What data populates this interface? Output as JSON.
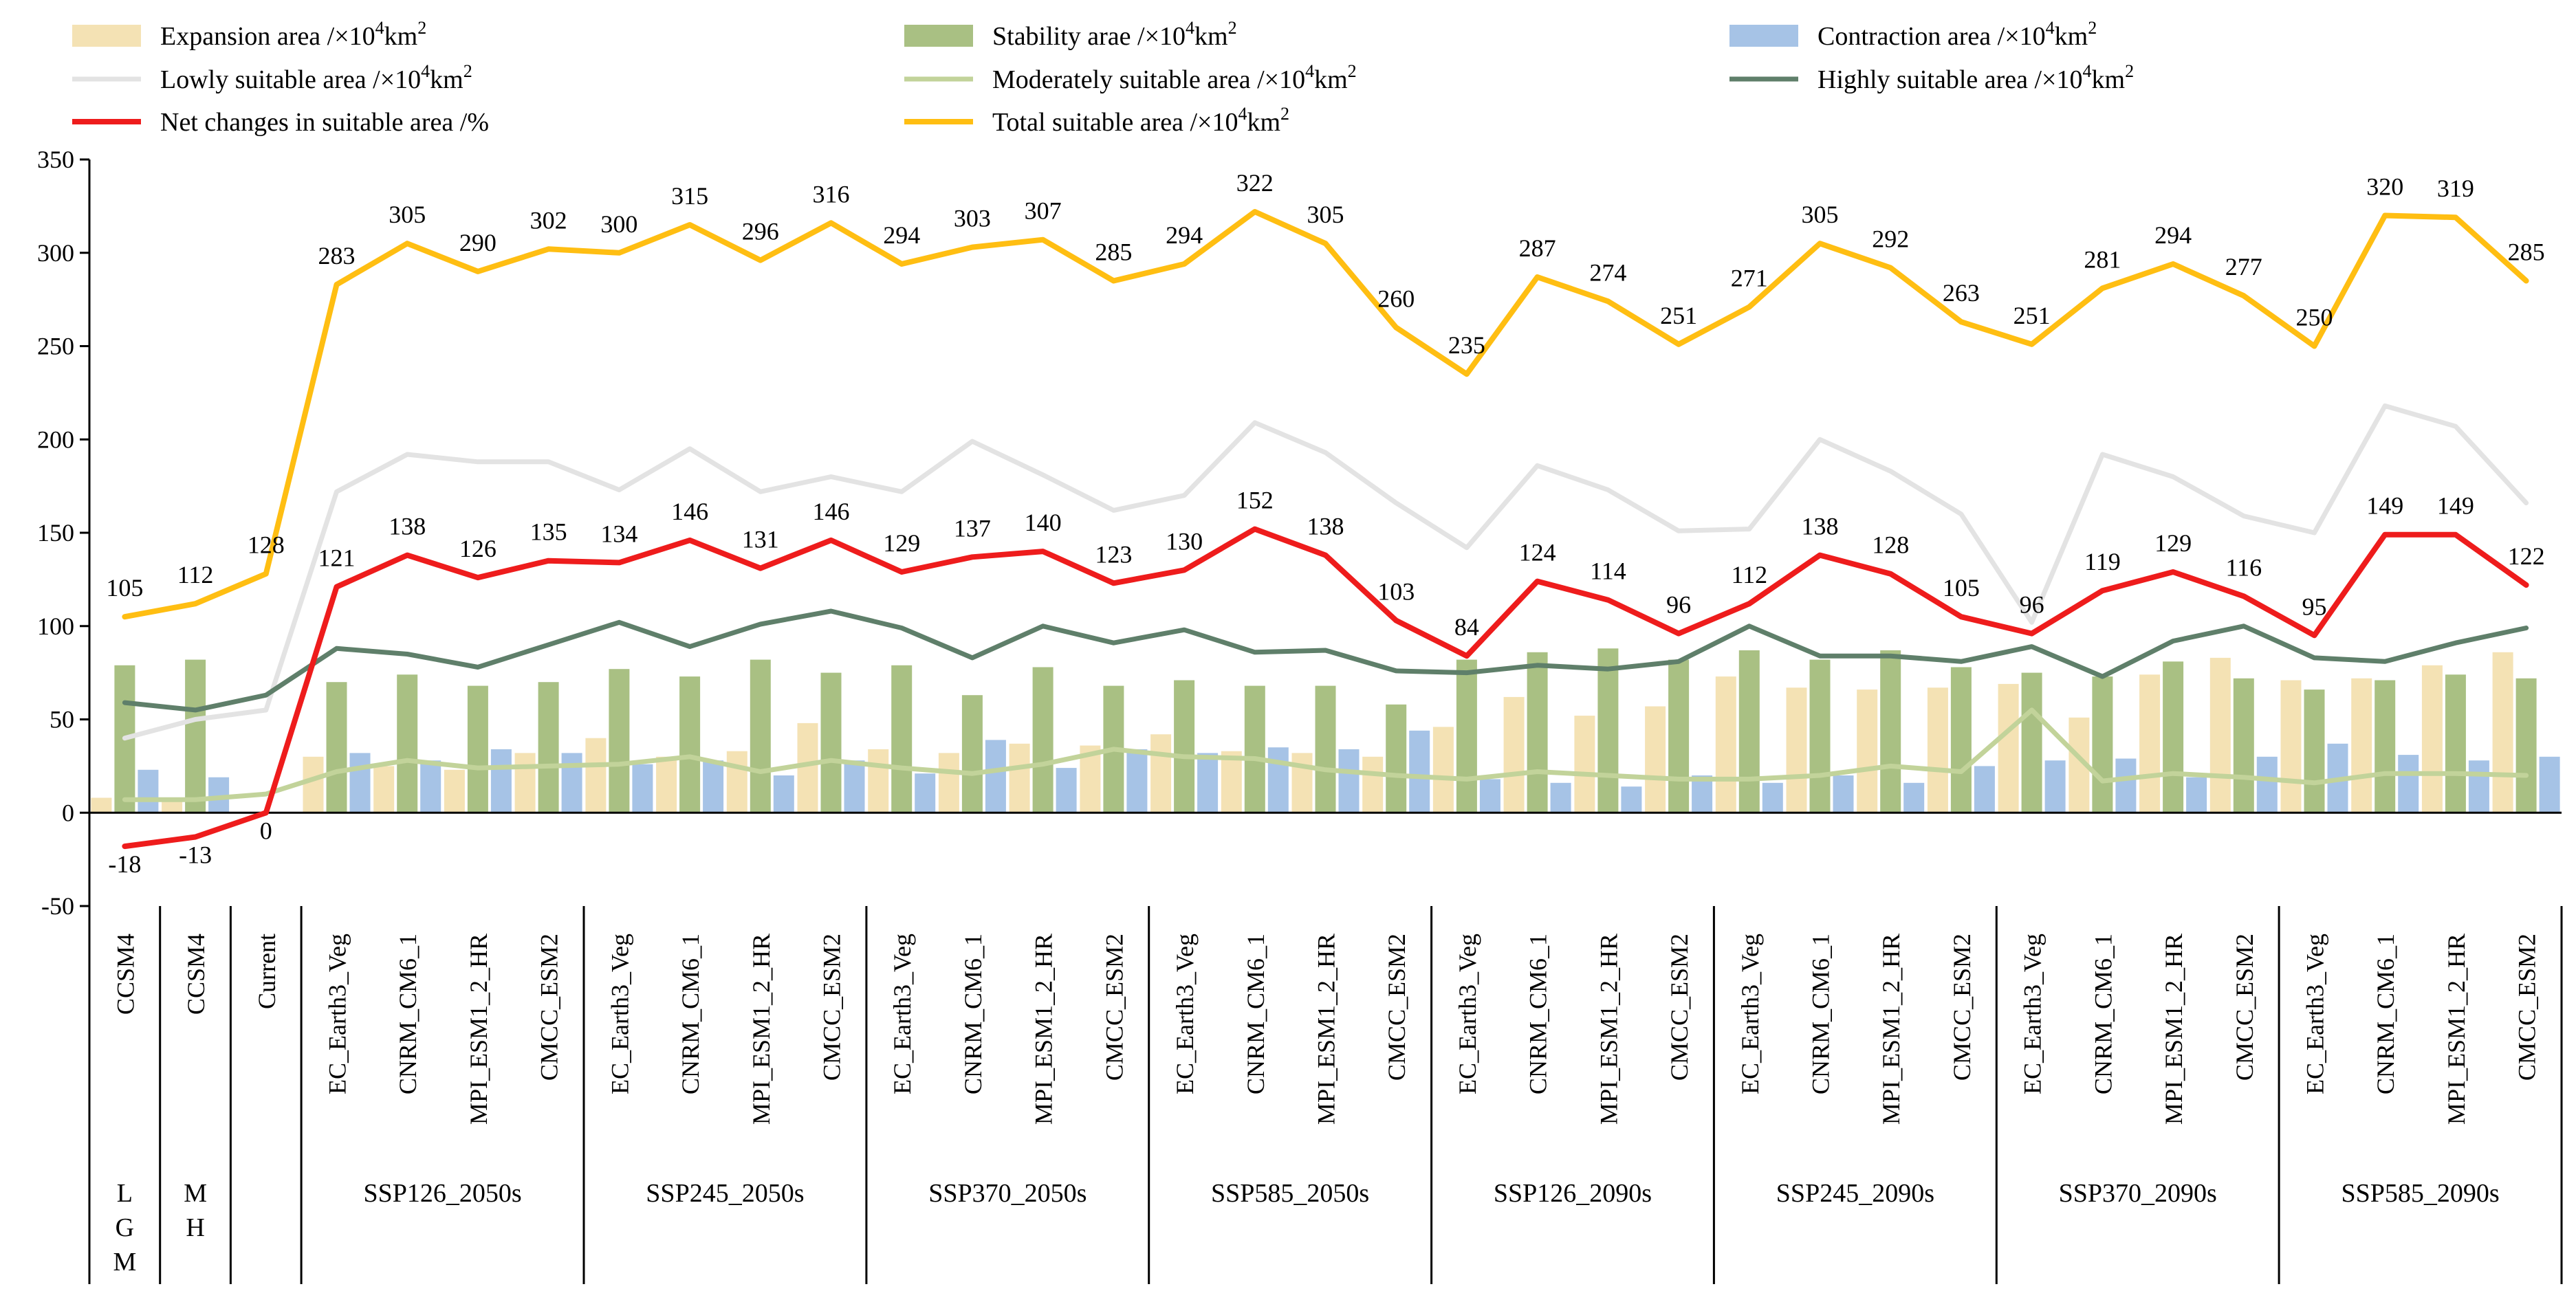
{
  "chart_data": {
    "type": "bar+line",
    "title": "",
    "xlabel": "",
    "ylabel": "",
    "ylim": [
      -50,
      350
    ],
    "yticks": [
      -50,
      0,
      50,
      100,
      150,
      200,
      250,
      300,
      350
    ],
    "grid": false,
    "legend_position": "top",
    "categories": [
      "CCSM4",
      "CCSM4",
      "Current",
      "EC_Earth3_Veg",
      "CNRM_CM6_1",
      "MPI_ESM1_2_HR",
      "CMCC_ESM2",
      "EC_Earth3_Veg",
      "CNRM_CM6_1",
      "MPI_ESM1_2_HR",
      "CMCC_ESM2",
      "EC_Earth3_Veg",
      "CNRM_CM6_1",
      "MPI_ESM1_2_HR",
      "CMCC_ESM2",
      "EC_Earth3_Veg",
      "CNRM_CM6_1",
      "MPI_ESM1_2_HR",
      "CMCC_ESM2",
      "EC_Earth3_Veg",
      "CNRM_CM6_1",
      "MPI_ESM1_2_HR",
      "CMCC_ESM2",
      "EC_Earth3_Veg",
      "CNRM_CM6_1",
      "MPI_ESM1_2_HR",
      "CMCC_ESM2",
      "EC_Earth3_Veg",
      "CNRM_CM6_1",
      "MPI_ESM1_2_HR",
      "CMCC_ESM2",
      "EC_Earth3_Veg",
      "CNRM_CM6_1",
      "MPI_ESM1_2_HR",
      "CMCC_ESM2"
    ],
    "groups": [
      {
        "label": "L\nG\nM",
        "start": 0,
        "end": 0
      },
      {
        "label": "M\nH",
        "start": 1,
        "end": 1
      },
      {
        "label": "",
        "start": 2,
        "end": 2
      },
      {
        "label": "SSP126_2050s",
        "start": 3,
        "end": 6
      },
      {
        "label": "SSP245_2050s",
        "start": 7,
        "end": 10
      },
      {
        "label": "SSP370_2050s",
        "start": 11,
        "end": 14
      },
      {
        "label": "SSP585_2050s",
        "start": 15,
        "end": 18
      },
      {
        "label": "SSP126_2090s",
        "start": 19,
        "end": 22
      },
      {
        "label": "SSP245_2090s",
        "start": 23,
        "end": 26
      },
      {
        "label": "SSP370_2090s",
        "start": 27,
        "end": 30
      },
      {
        "label": "SSP585_2090s",
        "start": 31,
        "end": 34
      }
    ],
    "bar_series": [
      {
        "name": "Expansion area",
        "unit": "/×10",
        "sup": "4",
        "unit2": "km",
        "sup2": "2",
        "color": "#f4e2b4",
        "values": [
          8,
          8,
          0,
          30,
          25,
          23,
          32,
          40,
          30,
          33,
          48,
          34,
          32,
          37,
          36,
          42,
          33,
          32,
          30,
          46,
          62,
          52,
          57,
          73,
          67,
          66,
          67,
          69,
          51,
          74,
          83,
          71,
          72,
          79,
          86
        ]
      },
      {
        "name": "Stability arae",
        "unit": "/×10",
        "sup": "4",
        "unit2": "km",
        "sup2": "2",
        "color": "#a9c083",
        "values": [
          79,
          82,
          0,
          70,
          74,
          68,
          70,
          77,
          73,
          82,
          75,
          79,
          63,
          78,
          68,
          71,
          68,
          68,
          58,
          82,
          86,
          88,
          82,
          87,
          82,
          87,
          78,
          75,
          73,
          81,
          72,
          66,
          71,
          74,
          72
        ]
      },
      {
        "name": "Contraction area",
        "unit": "/×10",
        "sup": "4",
        "unit2": "km",
        "sup2": "2",
        "color": "#a6c3e6",
        "values": [
          23,
          19,
          0,
          32,
          28,
          34,
          32,
          26,
          28,
          20,
          28,
          21,
          39,
          24,
          34,
          32,
          35,
          34,
          44,
          18,
          16,
          14,
          20,
          16,
          20,
          16,
          25,
          28,
          29,
          19,
          30,
          37,
          31,
          28,
          30
        ]
      }
    ],
    "line_series": [
      {
        "name": "Lowly suitable area",
        "unit": "/×10",
        "sup": "4",
        "unit2": "km",
        "sup2": "2",
        "color": "#e3e3e3",
        "width": 7,
        "values": [
          40,
          50,
          55,
          172,
          192,
          188,
          188,
          173,
          195,
          172,
          180,
          172,
          199,
          181,
          162,
          170,
          209,
          193,
          166,
          142,
          186,
          173,
          151,
          152,
          200,
          183,
          160,
          102,
          192,
          180,
          159,
          150,
          218,
          207,
          166
        ]
      },
      {
        "name": "Moderately suitable area",
        "unit": "/×10",
        "sup": "4",
        "unit2": "km",
        "sup2": "2",
        "color": "#c2d39a",
        "width": 7,
        "values": [
          7,
          7,
          10,
          22,
          28,
          24,
          25,
          26,
          30,
          22,
          28,
          24,
          21,
          26,
          34,
          30,
          29,
          23,
          20,
          18,
          22,
          20,
          18,
          18,
          20,
          25,
          22,
          55,
          17,
          21,
          19,
          16,
          21,
          21,
          20
        ]
      },
      {
        "name": "Highly suitable area",
        "unit": "/×10",
        "sup": "4",
        "unit2": "km",
        "sup2": "2",
        "color": "#5f7f6a",
        "width": 7,
        "values": [
          59,
          55,
          63,
          88,
          85,
          78,
          90,
          102,
          89,
          101,
          108,
          99,
          83,
          100,
          91,
          98,
          86,
          87,
          76,
          75,
          79,
          77,
          81,
          100,
          84,
          84,
          81,
          89,
          73,
          92,
          100,
          83,
          81,
          91,
          99
        ]
      },
      {
        "name": "Net changes in suitable area",
        "unit": "/%",
        "sup": "",
        "unit2": "",
        "sup2": "",
        "color": "#ee1c1c",
        "width": 8,
        "values": [
          -18,
          -13,
          0,
          121,
          138,
          126,
          135,
          134,
          146,
          131,
          146,
          129,
          137,
          140,
          123,
          130,
          152,
          138,
          103,
          84,
          124,
          114,
          96,
          112,
          138,
          128,
          105,
          96,
          119,
          129,
          116,
          95,
          149,
          149,
          122
        ],
        "labels": [
          "-18",
          "-13",
          "0",
          "121",
          "138",
          "126",
          "135",
          "134",
          "146",
          "131",
          "146",
          "129",
          "137",
          "140",
          "123",
          "130",
          "152",
          "138",
          "103",
          "84",
          "124",
          "114",
          "96",
          "112",
          "138",
          "128",
          "105",
          "96",
          "119",
          "129",
          "116",
          "95",
          "149",
          "149",
          "122"
        ]
      },
      {
        "name": "Total suitable area",
        "unit": "/×10",
        "sup": "4",
        "unit2": "km",
        "sup2": "2",
        "color": "#ffbe12",
        "width": 8,
        "values": [
          105,
          112,
          128,
          283,
          305,
          290,
          302,
          300,
          315,
          296,
          316,
          294,
          303,
          307,
          285,
          294,
          322,
          305,
          260,
          235,
          287,
          274,
          251,
          271,
          305,
          292,
          263,
          251,
          281,
          294,
          277,
          250,
          320,
          319,
          285
        ],
        "labels": [
          "105",
          "112",
          "128",
          "283",
          "305",
          "290",
          "302",
          "300",
          "315",
          "296",
          "316",
          "294",
          "303",
          "307",
          "285",
          "294",
          "322",
          "305",
          "260",
          "235",
          "287",
          "274",
          "251",
          "271",
          "305",
          "292",
          "263",
          "251",
          "281",
          "294",
          "277",
          "250",
          "320",
          "319",
          "285"
        ]
      }
    ],
    "legend_order": [
      "Expansion area",
      "Stability arae",
      "Contraction area",
      "Lowly suitable area",
      "Moderately suitable area",
      "Highly suitable area",
      "Net changes in suitable area",
      "Total suitable area"
    ]
  }
}
